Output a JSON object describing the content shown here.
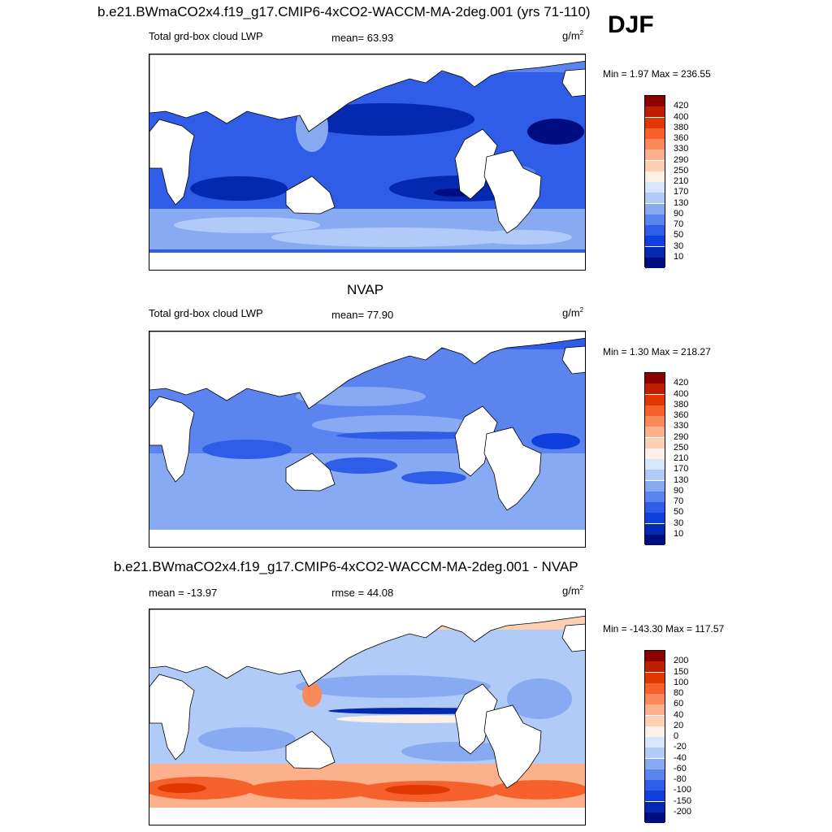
{
  "season": "DJF",
  "units": "g/m",
  "units_exp": "2",
  "panels": [
    {
      "title": "b.e21.BWmaCO2x4.f19_g17.CMIP6-4xCO2-WACCM-MA-2deg.001 (yrs 71-110)",
      "left_label": "Total grd-box cloud LWP",
      "center_label": "mean=  63.93",
      "minmax": "Min =   1.97 Max = 236.55"
    },
    {
      "title": "NVAP",
      "left_label": "Total grd-box cloud LWP",
      "center_label": "mean=  77.90",
      "minmax": "Min =   1.30 Max = 218.27"
    },
    {
      "title": "b.e21.BWmaCO2x4.f19_g17.CMIP6-4xCO2-WACCM-MA-2deg.001 - NVAP",
      "left_label": "mean = -13.97",
      "center_label": "rmse =  44.08",
      "minmax": "Min = -143.30 Max = 117.57"
    }
  ],
  "colorbars": {
    "abs_labels": [
      "420",
      "400",
      "380",
      "360",
      "330",
      "290",
      "250",
      "210",
      "170",
      "130",
      "90",
      "70",
      "50",
      "30",
      "10"
    ],
    "abs_colors": [
      "#8b0000",
      "#bf1f00",
      "#e03800",
      "#f5602c",
      "#fb8a5a",
      "#fcb08c",
      "#fdd0b4",
      "#fdf0e6",
      "#d6e6fb",
      "#b0cbf7",
      "#87aaf3",
      "#5b84ef",
      "#2f5de8",
      "#0f3fdc",
      "#0528b0",
      "#000d80"
    ],
    "diff_labels": [
      "200",
      "150",
      "100",
      "80",
      "60",
      "40",
      "20",
      "0",
      "-20",
      "-40",
      "-60",
      "-80",
      "-100",
      "-150",
      "-200"
    ],
    "diff_colors": [
      "#8b0000",
      "#bf1f00",
      "#e03800",
      "#f5602c",
      "#fb8a5a",
      "#fcb08c",
      "#fdd0b4",
      "#fdf0e6",
      "#d6e6fb",
      "#b0cbf7",
      "#87aaf3",
      "#5b84ef",
      "#2f5de8",
      "#0f3fdc",
      "#0528b0",
      "#000d80"
    ]
  },
  "chart_data": [
    {
      "type": "heatmap",
      "title": "b.e21.BWmaCO2x4.f19_g17.CMIP6-4xCO2-WACCM-MA-2deg.001 (yrs 71-110)",
      "variable": "Total grd-box cloud LWP",
      "season": "DJF",
      "units": "g/m2",
      "mean": 63.93,
      "min": 1.97,
      "max": 236.55,
      "levels": [
        10,
        30,
        50,
        70,
        90,
        130,
        170,
        210,
        250,
        290,
        330,
        360,
        380,
        400,
        420
      ]
    },
    {
      "type": "heatmap",
      "title": "NVAP",
      "variable": "Total grd-box cloud LWP",
      "units": "g/m2",
      "mean": 77.9,
      "min": 1.3,
      "max": 218.27,
      "levels": [
        10,
        30,
        50,
        70,
        90,
        130,
        170,
        210,
        250,
        290,
        330,
        360,
        380,
        400,
        420
      ]
    },
    {
      "type": "heatmap",
      "title": "b.e21.BWmaCO2x4.f19_g17.CMIP6-4xCO2-WACCM-MA-2deg.001 - NVAP",
      "units": "g/m2",
      "mean": -13.97,
      "rmse": 44.08,
      "min": -143.3,
      "max": 117.57,
      "levels": [
        -200,
        -150,
        -100,
        -80,
        -60,
        -40,
        -20,
        0,
        20,
        40,
        60,
        80,
        100,
        150,
        200
      ]
    }
  ]
}
